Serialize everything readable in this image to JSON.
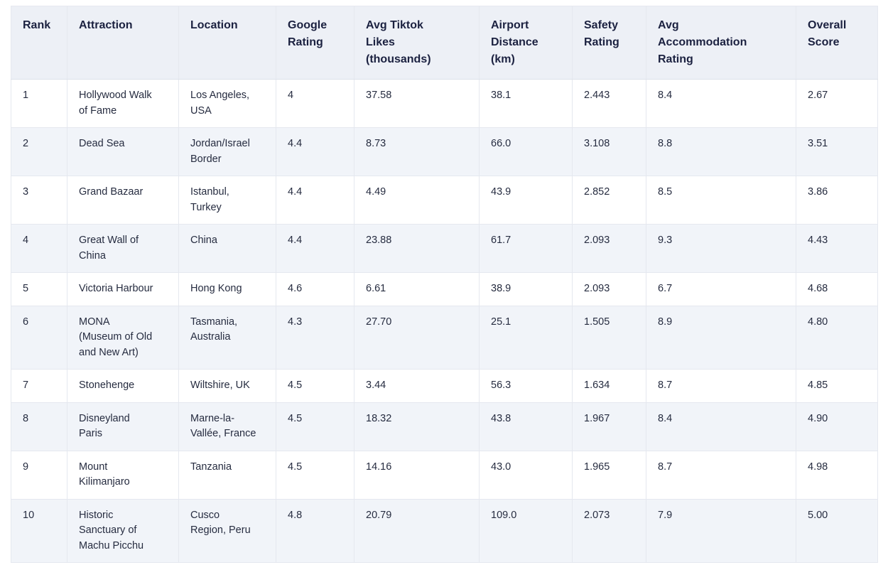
{
  "table": {
    "columns": [
      {
        "key": "rank",
        "label": "Rank"
      },
      {
        "key": "attraction",
        "label": "Attraction"
      },
      {
        "key": "location",
        "label": "Location"
      },
      {
        "key": "google_rating",
        "label": "Google Rating"
      },
      {
        "key": "avg_tiktok_likes",
        "label": "Avg Tiktok Likes (thousands)"
      },
      {
        "key": "airport_distance",
        "label": "Airport Distance (km)"
      },
      {
        "key": "safety_rating",
        "label": "Safety Rating"
      },
      {
        "key": "avg_accommodation_rating",
        "label": "Avg Accommodation Rating"
      },
      {
        "key": "overall_score",
        "label": "Overall Score"
      }
    ],
    "rows": [
      [
        "1",
        "Hollywood Walk of Fame",
        "Los Angeles, USA",
        "4",
        "37.58",
        "38.1",
        "2.443",
        "8.4",
        "2.67"
      ],
      [
        "2",
        "Dead Sea",
        "Jordan/Israel Border",
        "4.4",
        "8.73",
        "66.0",
        "3.108",
        "8.8",
        "3.51"
      ],
      [
        "3",
        "Grand Bazaar",
        "Istanbul, Turkey",
        "4.4",
        "4.49",
        "43.9",
        "2.852",
        "8.5",
        "3.86"
      ],
      [
        "4",
        "Great Wall of China",
        "China",
        "4.4",
        "23.88",
        "61.7",
        "2.093",
        "9.3",
        "4.43"
      ],
      [
        "5",
        "Victoria Harbour",
        "Hong Kong",
        "4.6",
        "6.61",
        "38.9",
        "2.093",
        "6.7",
        "4.68"
      ],
      [
        "6",
        "MONA (Museum of Old and New Art)",
        "Tasmania, Australia",
        "4.3",
        "27.70",
        "25.1",
        "1.505",
        "8.9",
        "4.80"
      ],
      [
        "7",
        "Stonehenge",
        "Wiltshire, UK",
        "4.5",
        "3.44",
        "56.3",
        "1.634",
        "8.7",
        "4.85"
      ],
      [
        "8",
        "Disneyland Paris",
        "Marne-la-Vallée, France",
        "4.5",
        "18.32",
        "43.8",
        "1.967",
        "8.4",
        "4.90"
      ],
      [
        "9",
        "Mount Kilimanjaro",
        "Tanzania",
        "4.5",
        "14.16",
        "43.0",
        "1.965",
        "8.7",
        "4.98"
      ],
      [
        "10",
        "Historic Sanctuary of Machu Picchu",
        "Cusco Region, Peru",
        "4.8",
        "20.79",
        "109.0",
        "2.073",
        "7.9",
        "5.00"
      ]
    ]
  },
  "colors": {
    "header_bg": "#edf0f6",
    "stripe_bg": "#f1f4f9",
    "border": "#e5e8ef",
    "text": "#262c40",
    "header_text": "#1b2140",
    "page_bg": "#ffffff"
  },
  "chart_data": {
    "type": "table",
    "title": "",
    "columns": [
      "Rank",
      "Attraction",
      "Location",
      "Google Rating",
      "Avg Tiktok Likes (thousands)",
      "Airport Distance (km)",
      "Safety Rating",
      "Avg Accommodation Rating",
      "Overall Score"
    ],
    "rows": [
      [
        "1",
        "Hollywood Walk of Fame",
        "Los Angeles, USA",
        "4",
        "37.58",
        "38.1",
        "2.443",
        "8.4",
        "2.67"
      ],
      [
        "2",
        "Dead Sea",
        "Jordan/Israel Border",
        "4.4",
        "8.73",
        "66.0",
        "3.108",
        "8.8",
        "3.51"
      ],
      [
        "3",
        "Grand Bazaar",
        "Istanbul, Turkey",
        "4.4",
        "4.49",
        "43.9",
        "2.852",
        "8.5",
        "3.86"
      ],
      [
        "4",
        "Great Wall of China",
        "China",
        "4.4",
        "23.88",
        "61.7",
        "2.093",
        "9.3",
        "4.43"
      ],
      [
        "5",
        "Victoria Harbour",
        "Hong Kong",
        "4.6",
        "6.61",
        "38.9",
        "2.093",
        "6.7",
        "4.68"
      ],
      [
        "6",
        "MONA (Museum of Old and New Art)",
        "Tasmania, Australia",
        "4.3",
        "27.70",
        "25.1",
        "1.505",
        "8.9",
        "4.80"
      ],
      [
        "7",
        "Stonehenge",
        "Wiltshire, UK",
        "4.5",
        "3.44",
        "56.3",
        "1.634",
        "8.7",
        "4.85"
      ],
      [
        "8",
        "Disneyland Paris",
        "Marne-la-Vallée, France",
        "4.5",
        "18.32",
        "43.8",
        "1.967",
        "8.4",
        "4.90"
      ],
      [
        "9",
        "Mount Kilimanjaro",
        "Tanzania",
        "4.5",
        "14.16",
        "43.0",
        "1.965",
        "8.7",
        "4.98"
      ],
      [
        "10",
        "Historic Sanctuary of Machu Picchu",
        "Cusco Region, Peru",
        "4.8",
        "20.79",
        "109.0",
        "2.073",
        "7.9",
        "5.00"
      ]
    ]
  }
}
